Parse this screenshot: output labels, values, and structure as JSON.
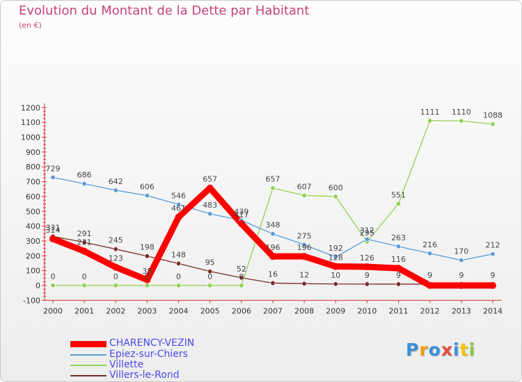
{
  "chart_data": {
    "type": "line",
    "title": "Evolution du Montant de la Dette par Habitant",
    "subtitle": "(en €)",
    "xlabel": "",
    "ylabel": "",
    "x": [
      "2000",
      "2001",
      "2002",
      "2003",
      "2004",
      "2005",
      "2006",
      "2007",
      "2008",
      "2009",
      "2010",
      "2011",
      "2012",
      "2013",
      "2014"
    ],
    "yticks": [
      "1200",
      "1100",
      "1000",
      "900",
      "800",
      "700",
      "600",
      "500",
      "400",
      "300",
      "200",
      "100",
      "0",
      "-100"
    ],
    "ylim": [
      -100,
      1200
    ],
    "grid": false,
    "legend_position": "bottom-left",
    "series": [
      {
        "name": "CHARENCY-VEZIN",
        "color": "#ff0000",
        "values": [
          314,
          231,
          123,
          38,
          461,
          657,
          417,
          196,
          196,
          128,
          126,
          116,
          0,
          0,
          0
        ]
      },
      {
        "name": "Epiez-sur-Chiers",
        "color": "#5b9bd5",
        "values": [
          729,
          686,
          642,
          606,
          546,
          483,
          439,
          348,
          275,
          192,
          312,
          263,
          216,
          170,
          212
        ]
      },
      {
        "name": "Villette",
        "color": "#92d050",
        "values": [
          0,
          0,
          0,
          0,
          0,
          0,
          0,
          657,
          607,
          600,
          295,
          551,
          1111,
          1110,
          1088
        ]
      },
      {
        "name": "Villers-le-Rond",
        "color": "#7b2a2a",
        "values": [
          331,
          291,
          245,
          198,
          148,
          95,
          52,
          16,
          12,
          10,
          9,
          9,
          9,
          9,
          9
        ]
      }
    ],
    "point_labels": [
      [
        "314",
        "231",
        "123",
        "38",
        "461",
        "657",
        "417",
        "196",
        "196",
        "128",
        "126",
        "116",
        "",
        "",
        ""
      ],
      [
        "729",
        "686",
        "642",
        "606",
        "546",
        "483",
        "439",
        "348",
        "275",
        "192",
        "312",
        "263",
        "216",
        "170",
        "212"
      ],
      [
        "0",
        "0",
        "0",
        "0",
        "0",
        "0",
        "0",
        "657",
        "607",
        "600",
        "295",
        "551",
        "1111",
        "1110",
        "1088"
      ],
      [
        "331",
        "291",
        "245",
        "198",
        "148",
        "95",
        "52",
        "16",
        "12",
        "10",
        "9",
        "9",
        "9",
        "9",
        "9"
      ]
    ]
  },
  "brand": {
    "letters": [
      "P",
      "r",
      "o",
      "x",
      "i",
      "t",
      "i"
    ],
    "colors": [
      "#3b8ed8",
      "#f39c12",
      "#3b8ed8",
      "#e74c3c",
      "#3b8ed8",
      "#f1c40f",
      "#8cc63f"
    ]
  }
}
